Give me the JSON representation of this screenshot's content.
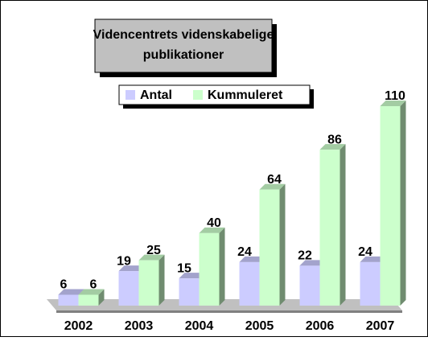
{
  "chart_data": {
    "type": "bar3d",
    "title": "Videncentrets videnskabelige publikationer",
    "categories": [
      "2002",
      "2003",
      "2004",
      "2005",
      "2006",
      "2007"
    ],
    "series": [
      {
        "name": "Antal",
        "color": "#ccccff",
        "values": [
          6,
          19,
          15,
          24,
          22,
          24
        ]
      },
      {
        "name": "Kummuleret",
        "color": "#ccffcc",
        "values": [
          6,
          25,
          40,
          64,
          86,
          110
        ]
      }
    ],
    "ylim": [
      0,
      110
    ],
    "legend": "top"
  }
}
